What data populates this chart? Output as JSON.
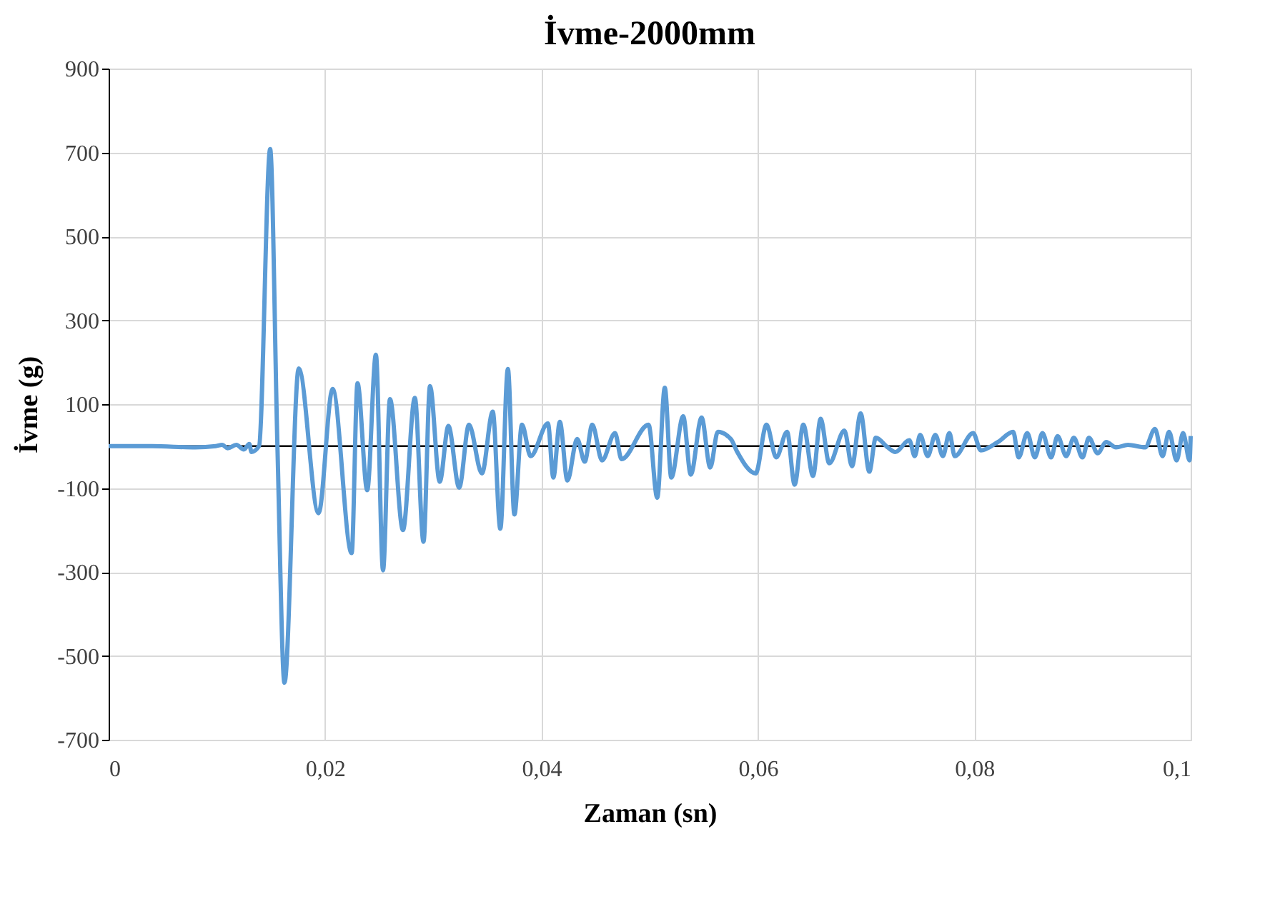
{
  "chart_data": {
    "type": "line",
    "title": "İvme-2000mm",
    "xlabel": "Zaman (sn)",
    "ylabel": "İvme (g)",
    "x": [
      0,
      0.004,
      0.008,
      0.0099,
      0.0105,
      0.011,
      0.0118,
      0.0125,
      0.013,
      0.0132,
      0.0139,
      0.01493,
      0.0156,
      0.01625,
      0.01757,
      0.0194,
      0.0207,
      0.02246,
      0.023,
      0.0239,
      0.0247,
      0.02536,
      0.026,
      0.0272,
      0.0283,
      0.0291,
      0.0297,
      0.0306,
      0.0314,
      0.0324,
      0.0333,
      0.0345,
      0.0355,
      0.0362,
      0.0369,
      0.0375,
      0.0382,
      0.039,
      0.0406,
      0.0411,
      0.0417,
      0.0424,
      0.0433,
      0.044,
      0.0447,
      0.0456,
      0.0468,
      0.0474,
      0.0499,
      0.0507,
      0.0514,
      0.052,
      0.0531,
      0.0538,
      0.0548,
      0.0556,
      0.0563,
      0.0575,
      0.0581,
      0.0598,
      0.0608,
      0.0617,
      0.0627,
      0.0634,
      0.0642,
      0.0651,
      0.0658,
      0.0666,
      0.068,
      0.0687,
      0.0695,
      0.0703,
      0.0709,
      0.072,
      0.0727,
      0.074,
      0.0745,
      0.075,
      0.0757,
      0.0764,
      0.0771,
      0.0777,
      0.0782,
      0.0799,
      0.0806,
      0.0822,
      0.0836,
      0.0841,
      0.0849,
      0.0856,
      0.0863,
      0.0871,
      0.0877,
      0.0885,
      0.0892,
      0.09,
      0.0906,
      0.0914,
      0.0922,
      0.0931,
      0.0942,
      0.0958,
      0.0967,
      0.0974,
      0.098,
      0.0987,
      0.0993,
      0.0999,
      0.1
    ],
    "series": [
      {
        "color": "#5b9bd5",
        "values": [
          0,
          0,
          -3,
          0,
          3,
          -5,
          3,
          -8,
          5,
          -14,
          0,
          708,
          0,
          -564,
          185,
          -160,
          136,
          -255,
          150,
          -105,
          218,
          -296,
          112,
          -200,
          115,
          -228,
          143,
          -85,
          48,
          -99,
          51,
          -65,
          82,
          -197,
          184,
          -163,
          51,
          -24,
          54,
          -75,
          58,
          -82,
          17,
          -37,
          51,
          -34,
          31,
          -31,
          51,
          -123,
          139,
          -75,
          71,
          -68,
          68,
          -51,
          34,
          17,
          -14,
          -65,
          51,
          -27,
          34,
          -92,
          51,
          -71,
          65,
          -41,
          37,
          -48,
          78,
          -61,
          20,
          -3,
          -14,
          14,
          -24,
          27,
          -24,
          27,
          -24,
          31,
          -24,
          31,
          -10,
          10,
          34,
          -27,
          31,
          -27,
          31,
          -27,
          24,
          -24,
          20,
          -27,
          20,
          -17,
          10,
          -3,
          3,
          -3,
          41,
          -24,
          34,
          -34,
          31,
          -34,
          24
        ]
      }
    ],
    "xlim": [
      0,
      0.1
    ],
    "xticks": [
      0,
      {
        "value": 0.02,
        "label": "0,02"
      },
      {
        "value": 0.04,
        "label": "0,04"
      },
      {
        "value": 0.06,
        "label": "0,06"
      },
      {
        "value": 0.08,
        "label": "0,08"
      },
      {
        "value": 0.1,
        "label": "0,1"
      }
    ],
    "ylim": [
      -700,
      900
    ],
    "yticks": [
      -700,
      -500,
      -300,
      -100,
      100,
      300,
      500,
      700,
      900
    ],
    "ref_lines": [
      {
        "axis": "y",
        "value": 0,
        "color": "#000000"
      }
    ],
    "grid": true,
    "marker": "none",
    "line_style": "solid"
  }
}
